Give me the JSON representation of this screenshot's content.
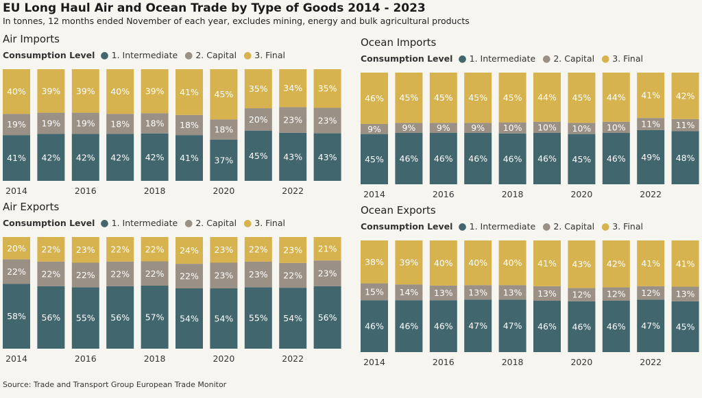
{
  "title": "EU Long Haul Air and Ocean Trade by Type of Goods 2014 - 2023",
  "subtitle": "In tonnes, 12 months ended November of each year, excludes mining, energy and bulk agricultural products",
  "source": "Source: Trade and Transport Group European Trade Monitor",
  "legend": {
    "title": "Consumption Level",
    "items": [
      {
        "label": "1. Intermediate",
        "color": "#41666e"
      },
      {
        "label": "2. Capital",
        "color": "#9b9085"
      },
      {
        "label": "3. Final",
        "color": "#d6b34e"
      }
    ]
  },
  "colors": {
    "intermediate": "#41666e",
    "capital": "#9b9085",
    "final": "#d6b34e",
    "label_light": "#ffffff"
  },
  "chart_data": [
    {
      "type": "bar",
      "stacked": "percent",
      "title": "Air Imports",
      "categories": [
        "2014",
        "2015",
        "2016",
        "2017",
        "2018",
        "2019",
        "2020",
        "2021",
        "2022",
        "2023"
      ],
      "tick_labels": [
        "2014",
        "",
        "2016",
        "",
        "2018",
        "",
        "2020",
        "",
        "2022",
        ""
      ],
      "series": [
        {
          "name": "1. Intermediate",
          "values": [
            41,
            42,
            42,
            42,
            42,
            41,
            37,
            45,
            43,
            43
          ]
        },
        {
          "name": "2. Capital",
          "values": [
            19,
            19,
            19,
            18,
            18,
            18,
            18,
            20,
            23,
            23
          ]
        },
        {
          "name": "3. Final",
          "values": [
            40,
            39,
            39,
            40,
            39,
            41,
            45,
            35,
            34,
            35
          ]
        }
      ],
      "ylim": [
        0,
        100
      ]
    },
    {
      "type": "bar",
      "stacked": "percent",
      "title": "Ocean Imports",
      "categories": [
        "2014",
        "2015",
        "2016",
        "2017",
        "2018",
        "2019",
        "2020",
        "2021",
        "2022",
        "2023"
      ],
      "tick_labels": [
        "2014",
        "",
        "2016",
        "",
        "2018",
        "",
        "2020",
        "",
        "2022",
        ""
      ],
      "series": [
        {
          "name": "1. Intermediate",
          "values": [
            45,
            46,
            46,
            46,
            46,
            46,
            45,
            46,
            49,
            48
          ]
        },
        {
          "name": "2. Capital",
          "values": [
            9,
            9,
            9,
            9,
            10,
            10,
            10,
            10,
            11,
            11
          ]
        },
        {
          "name": "3. Final",
          "values": [
            46,
            45,
            45,
            45,
            45,
            44,
            45,
            44,
            41,
            42
          ]
        }
      ],
      "ylim": [
        0,
        100
      ]
    },
    {
      "type": "bar",
      "stacked": "percent",
      "title": "Air Exports",
      "categories": [
        "2014",
        "2015",
        "2016",
        "2017",
        "2018",
        "2019",
        "2020",
        "2021",
        "2022",
        "2023"
      ],
      "tick_labels": [
        "2014",
        "",
        "2016",
        "",
        "2018",
        "",
        "2020",
        "",
        "2022",
        ""
      ],
      "series": [
        {
          "name": "1. Intermediate",
          "values": [
            58,
            56,
            55,
            56,
            57,
            54,
            54,
            55,
            54,
            56
          ]
        },
        {
          "name": "2. Capital",
          "values": [
            22,
            22,
            22,
            22,
            22,
            22,
            23,
            23,
            22,
            23
          ]
        },
        {
          "name": "3. Final",
          "values": [
            20,
            22,
            23,
            22,
            22,
            24,
            23,
            22,
            23,
            21
          ]
        }
      ],
      "ylim": [
        0,
        100
      ]
    },
    {
      "type": "bar",
      "stacked": "percent",
      "title": "Ocean Exports",
      "categories": [
        "2014",
        "2015",
        "2016",
        "2017",
        "2018",
        "2019",
        "2020",
        "2021",
        "2022",
        "2023"
      ],
      "tick_labels": [
        "2014",
        "",
        "2016",
        "",
        "2018",
        "",
        "2020",
        "",
        "2022",
        ""
      ],
      "series": [
        {
          "name": "1. Intermediate",
          "values": [
            46,
            46,
            46,
            47,
            47,
            46,
            46,
            46,
            47,
            45
          ]
        },
        {
          "name": "2. Capital",
          "values": [
            15,
            14,
            13,
            13,
            13,
            13,
            12,
            12,
            12,
            13
          ]
        },
        {
          "name": "3. Final",
          "values": [
            38,
            39,
            40,
            40,
            40,
            41,
            43,
            42,
            41,
            41
          ]
        }
      ],
      "ylim": [
        0,
        100
      ]
    }
  ]
}
